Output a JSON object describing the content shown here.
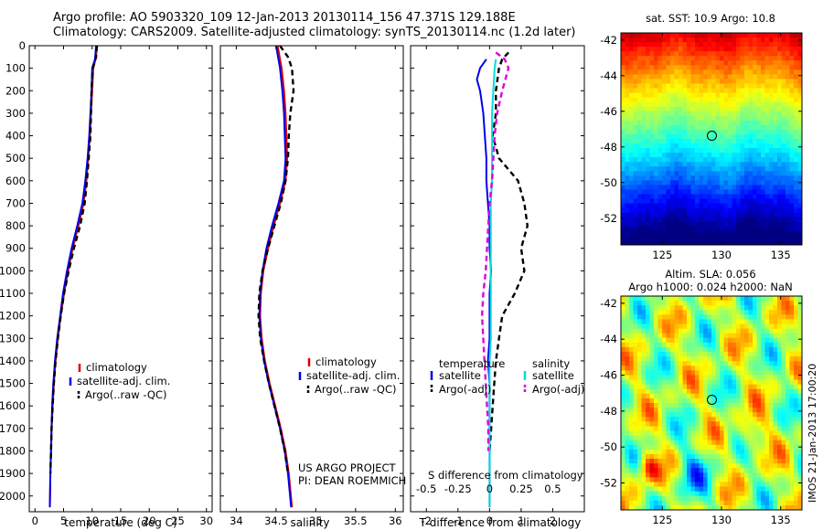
{
  "header": {
    "line1": "Argo profile: AO 5903320_109 12-Jan-2013 20130114_156 47.371S 129.188E",
    "line2": "Climatology: CARS2009. Satellite-adjusted climatology: synTS_20130114.nc (1.2d later)"
  },
  "credit": {
    "line1": "US ARGO PROJECT",
    "line2": "PI: DEAN ROEMMICH"
  },
  "vertical_stamp": "IMOS 21-Jan-2013 17:00:20",
  "colors": {
    "climatology": "#dd0000",
    "satellite": "#0000ee",
    "argo": "#000000",
    "sal_satellite": "#00dddd",
    "sal_argo": "#dd00dd"
  },
  "chart_data": [
    {
      "type": "line",
      "xlabel": "temperature (deg C)",
      "ylabel": "",
      "xlim": [
        -1,
        31
      ],
      "ylim": [
        2070,
        0
      ],
      "y_inverted": true,
      "x_ticks": [
        0,
        5,
        10,
        15,
        20,
        25,
        30
      ],
      "y_ticks": [
        0,
        100,
        200,
        300,
        400,
        500,
        600,
        700,
        800,
        900,
        1000,
        1100,
        1200,
        1300,
        1400,
        1500,
        1600,
        1700,
        1800,
        1900,
        2000
      ],
      "legend_placement": "center-left",
      "series": [
        {
          "name": "climatology",
          "style": "solid",
          "color": "#dd0000",
          "x": [
            10.9,
            10.6,
            10.2,
            10.0,
            9.8,
            9.6,
            9.3,
            9.0,
            8.5,
            7.6,
            6.6,
            5.8,
            5.1,
            4.5,
            4.0,
            3.6,
            3.3,
            3.1,
            2.9,
            2.8,
            2.7,
            2.6
          ],
          "y": [
            0,
            60,
            100,
            200,
            300,
            400,
            500,
            600,
            700,
            800,
            900,
            1000,
            1100,
            1200,
            1300,
            1400,
            1500,
            1600,
            1700,
            1800,
            1900,
            2050
          ]
        },
        {
          "name": "satellite-adj. clim.",
          "style": "solid",
          "color": "#0000ee",
          "x": [
            10.7,
            10.5,
            10.0,
            9.9,
            9.7,
            9.5,
            9.2,
            8.8,
            8.3,
            7.4,
            6.4,
            5.6,
            4.9,
            4.4,
            3.9,
            3.5,
            3.2,
            3.0,
            2.9,
            2.8,
            2.7,
            2.6
          ],
          "y": [
            0,
            60,
            100,
            200,
            300,
            400,
            500,
            600,
            700,
            800,
            900,
            1000,
            1100,
            1200,
            1300,
            1400,
            1500,
            1600,
            1700,
            1800,
            1900,
            2050
          ]
        },
        {
          "name": "Argo(..raw -QC)",
          "style": "dashed",
          "color": "#000000",
          "x": [
            10.8,
            10.7,
            10.1,
            9.9,
            9.8,
            9.7,
            9.4,
            9.1,
            8.7,
            7.9,
            6.8,
            5.9,
            5.1,
            4.5,
            4.0,
            3.6,
            3.3,
            3.1,
            2.9,
            2.8,
            2.7
          ],
          "y": [
            0,
            50,
            100,
            200,
            300,
            400,
            500,
            600,
            700,
            800,
            900,
            1000,
            1100,
            1200,
            1300,
            1400,
            1500,
            1600,
            1700,
            1800,
            1900
          ]
        }
      ]
    },
    {
      "type": "line",
      "xlabel": "salinity",
      "xlim": [
        33.8,
        36.1
      ],
      "ylim": [
        2070,
        0
      ],
      "y_inverted": true,
      "x_ticks": [
        34,
        34.5,
        35,
        35.5,
        36
      ],
      "legend_placement": "center-right",
      "series": [
        {
          "name": "climatology",
          "style": "solid",
          "color": "#dd0000",
          "x": [
            34.52,
            34.55,
            34.57,
            34.6,
            34.62,
            34.63,
            34.64,
            34.62,
            34.55,
            34.47,
            34.4,
            34.34,
            34.31,
            34.3,
            34.32,
            34.36,
            34.42,
            34.49,
            34.56,
            34.62,
            34.66,
            34.7
          ],
          "y": [
            0,
            60,
            100,
            200,
            300,
            400,
            500,
            600,
            700,
            800,
            900,
            1000,
            1100,
            1200,
            1300,
            1400,
            1500,
            1600,
            1700,
            1800,
            1900,
            2050
          ]
        },
        {
          "name": "satellite-adj. clim.",
          "style": "solid",
          "color": "#0000ee",
          "x": [
            34.5,
            34.53,
            34.55,
            34.58,
            34.6,
            34.61,
            34.62,
            34.6,
            34.53,
            34.45,
            34.38,
            34.33,
            34.3,
            34.29,
            34.31,
            34.35,
            34.41,
            34.48,
            34.55,
            34.61,
            34.65,
            34.69
          ],
          "y": [
            0,
            60,
            100,
            200,
            300,
            400,
            500,
            600,
            700,
            800,
            900,
            1000,
            1100,
            1200,
            1300,
            1400,
            1500,
            1600,
            1700,
            1800,
            1900,
            2050
          ]
        },
        {
          "name": "Argo(..raw -QC)",
          "style": "dashed",
          "color": "#000000",
          "x": [
            34.55,
            34.65,
            34.7,
            34.72,
            34.68,
            34.66,
            34.65,
            34.62,
            34.56,
            34.48,
            34.4,
            34.33,
            34.29,
            34.28,
            34.3,
            34.35,
            34.41,
            34.48,
            34.55,
            34.61,
            34.65
          ],
          "y": [
            0,
            50,
            100,
            200,
            300,
            400,
            500,
            600,
            700,
            800,
            900,
            1000,
            1100,
            1200,
            1300,
            1400,
            1500,
            1600,
            1700,
            1800,
            1900
          ]
        }
      ]
    },
    {
      "type": "line",
      "xlabel": "T difference from climatology",
      "x2label": "S difference from climatology",
      "xlim": [
        -2.5,
        3.0
      ],
      "ylim": [
        2070,
        0
      ],
      "y_inverted": true,
      "x_ticks": [
        -2,
        -1,
        0,
        1,
        2
      ],
      "x2lim": [
        -0.625,
        0.75
      ],
      "x2_ticks": [
        -0.5,
        -0.25,
        0,
        0.25,
        0.5
      ],
      "legend_placement": "bottom",
      "legend_groups": {
        "temperature": "temperature",
        "salinity": "salinity"
      },
      "series": [
        {
          "name": "satellite",
          "group": "temperature",
          "style": "solid",
          "color": "#0000ee",
          "x": [
            -0.1,
            -0.3,
            -0.4,
            -0.3,
            -0.2,
            -0.15,
            -0.1,
            -0.1,
            -0.05,
            0.0,
            0.0,
            0.05,
            0.0,
            0.0,
            0.0,
            -0.05,
            0.0,
            0.0,
            0.0,
            0.0,
            0.0
          ],
          "y": [
            60,
            100,
            150,
            200,
            300,
            400,
            500,
            600,
            700,
            800,
            900,
            1000,
            1100,
            1200,
            1300,
            1400,
            1500,
            1600,
            1700,
            1800,
            2050
          ]
        },
        {
          "name": "Argo(-adj)",
          "group": "temperature",
          "style": "dashed",
          "color": "#000000",
          "x": [
            0.6,
            0.4,
            0.3,
            0.2,
            0.2,
            0.1,
            0.3,
            0.9,
            1.1,
            1.2,
            1.0,
            1.1,
            0.8,
            0.4,
            0.3,
            0.2,
            0.15,
            0.1,
            0.05,
            0.0
          ],
          "y": [
            30,
            60,
            100,
            200,
            300,
            400,
            500,
            600,
            700,
            800,
            900,
            1000,
            1100,
            1200,
            1300,
            1400,
            1500,
            1600,
            1700,
            1800
          ]
        },
        {
          "name": "satellite",
          "group": "salinity",
          "style": "solid",
          "color": "#00dddd",
          "x": [
            0.05,
            0.04,
            0.03,
            0.02,
            0.02,
            0.02,
            0.02,
            0.01,
            0.01,
            0.01,
            0.01,
            0.01,
            0.01,
            0.01,
            0.0,
            0.0,
            0.0,
            0.0,
            0.0,
            0.0
          ],
          "y": [
            60,
            100,
            200,
            300,
            400,
            500,
            600,
            700,
            800,
            900,
            1000,
            1100,
            1200,
            1300,
            1400,
            1500,
            1600,
            1700,
            1800,
            2050
          ]
        },
        {
          "name": "Argo(-adj)",
          "group": "salinity",
          "style": "dashed",
          "color": "#dd00dd",
          "x": [
            0.05,
            0.12,
            0.15,
            0.1,
            0.06,
            0.04,
            0.03,
            0.02,
            0.0,
            -0.01,
            -0.02,
            -0.03,
            -0.05,
            -0.06,
            -0.05,
            -0.04,
            -0.03,
            -0.02,
            -0.01,
            -0.01
          ],
          "y": [
            30,
            60,
            100,
            200,
            300,
            400,
            500,
            600,
            700,
            800,
            900,
            1000,
            1100,
            1200,
            1300,
            1400,
            1500,
            1600,
            1700,
            1800
          ]
        }
      ]
    },
    {
      "type": "heatmap",
      "title": "sat. SST: 10.9 Argo: 10.8",
      "xlim": [
        121.5,
        136.8
      ],
      "ylim": [
        -53.5,
        -41.6
      ],
      "x_ticks": [
        125,
        130,
        135
      ],
      "y_ticks": [
        -42,
        -44,
        -46,
        -48,
        -50,
        -52
      ],
      "marker": {
        "lon": 129.188,
        "lat": -47.371
      },
      "colormap": "jet"
    },
    {
      "type": "heatmap",
      "title": "Altim. SLA: 0.056",
      "subtitle": "Argo h1000: 0.024 h2000: NaN",
      "xlim": [
        121.5,
        136.8
      ],
      "ylim": [
        -53.5,
        -41.6
      ],
      "x_ticks": [
        125,
        130,
        135
      ],
      "y_ticks": [
        -42,
        -44,
        -46,
        -48,
        -50,
        -52
      ],
      "marker": {
        "lon": 129.188,
        "lat": -47.371
      },
      "colormap": "jet"
    }
  ]
}
